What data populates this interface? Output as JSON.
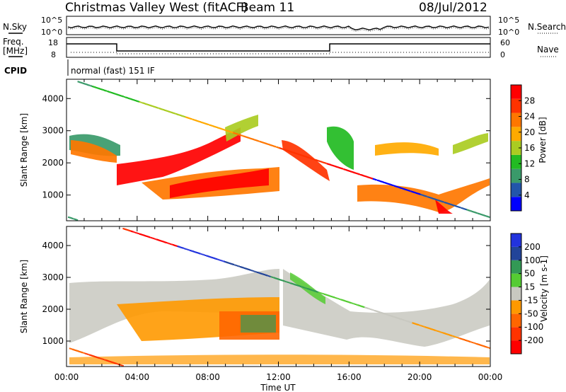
{
  "header": {
    "title": "Christmas Valley West (fitACF)",
    "beam": "Beam 11",
    "date": "08/Jul/2012"
  },
  "top_panels": {
    "n_sky_label": "N.Sky",
    "n_search_label": "N.Search",
    "noise_ticks_left": [
      "10^5",
      "10^0"
    ],
    "noise_ticks_right": [
      "10^5",
      "10^0"
    ],
    "freq_label": "Freq.",
    "freq_unit": "[MHz]",
    "freq_ticks": [
      "18",
      "8"
    ],
    "nave_label": "Nave",
    "nave_ticks": [
      "60",
      "0"
    ],
    "cpid_label": "CPID",
    "cpid_text": "normal (fast) 151 IF"
  },
  "colors": {
    "power_scale": [
      "#0000ff",
      "#2255aa",
      "#3a9a6a",
      "#22bb22",
      "#aacc22",
      "#ffaa00",
      "#ff7700",
      "#ff3300",
      "#ff0000"
    ],
    "velocity_scale": [
      "#2233dd",
      "#224499",
      "#339955",
      "#55cc33",
      "#c8c8c0",
      "#ff9900",
      "#ff6600",
      "#ff3300",
      "#ff0000"
    ]
  },
  "chart_data": [
    {
      "type": "heatmap",
      "name": "power",
      "ylabel": "Slant Range [km]",
      "xlabel": "",
      "x_ticks": [
        "00:00",
        "04:00",
        "08:00",
        "12:00",
        "16:00",
        "20:00",
        "00:00"
      ],
      "y_ticks": [
        "1000",
        "2000",
        "3000",
        "4000"
      ],
      "ylim": [
        200,
        4600
      ],
      "xlim_hours": [
        0,
        24
      ],
      "colorbar_label": "Power [dB]",
      "colorbar_ticks": [
        "4",
        "8",
        "12",
        "16",
        "20",
        "24",
        "28"
      ]
    },
    {
      "type": "heatmap",
      "name": "velocity",
      "ylabel": "Slant Range [km]",
      "xlabel": "Time UT",
      "x_ticks": [
        "00:00",
        "04:00",
        "08:00",
        "12:00",
        "16:00",
        "20:00",
        "00:00"
      ],
      "y_ticks": [
        "1000",
        "2000",
        "3000",
        "4000"
      ],
      "ylim": [
        200,
        4600
      ],
      "xlim_hours": [
        0,
        24
      ],
      "colorbar_label": "Velocity [m s-1]",
      "colorbar_ticks": [
        "200",
        "100",
        "50",
        "15",
        "-15",
        "-50",
        "-100",
        "-200"
      ]
    }
  ]
}
